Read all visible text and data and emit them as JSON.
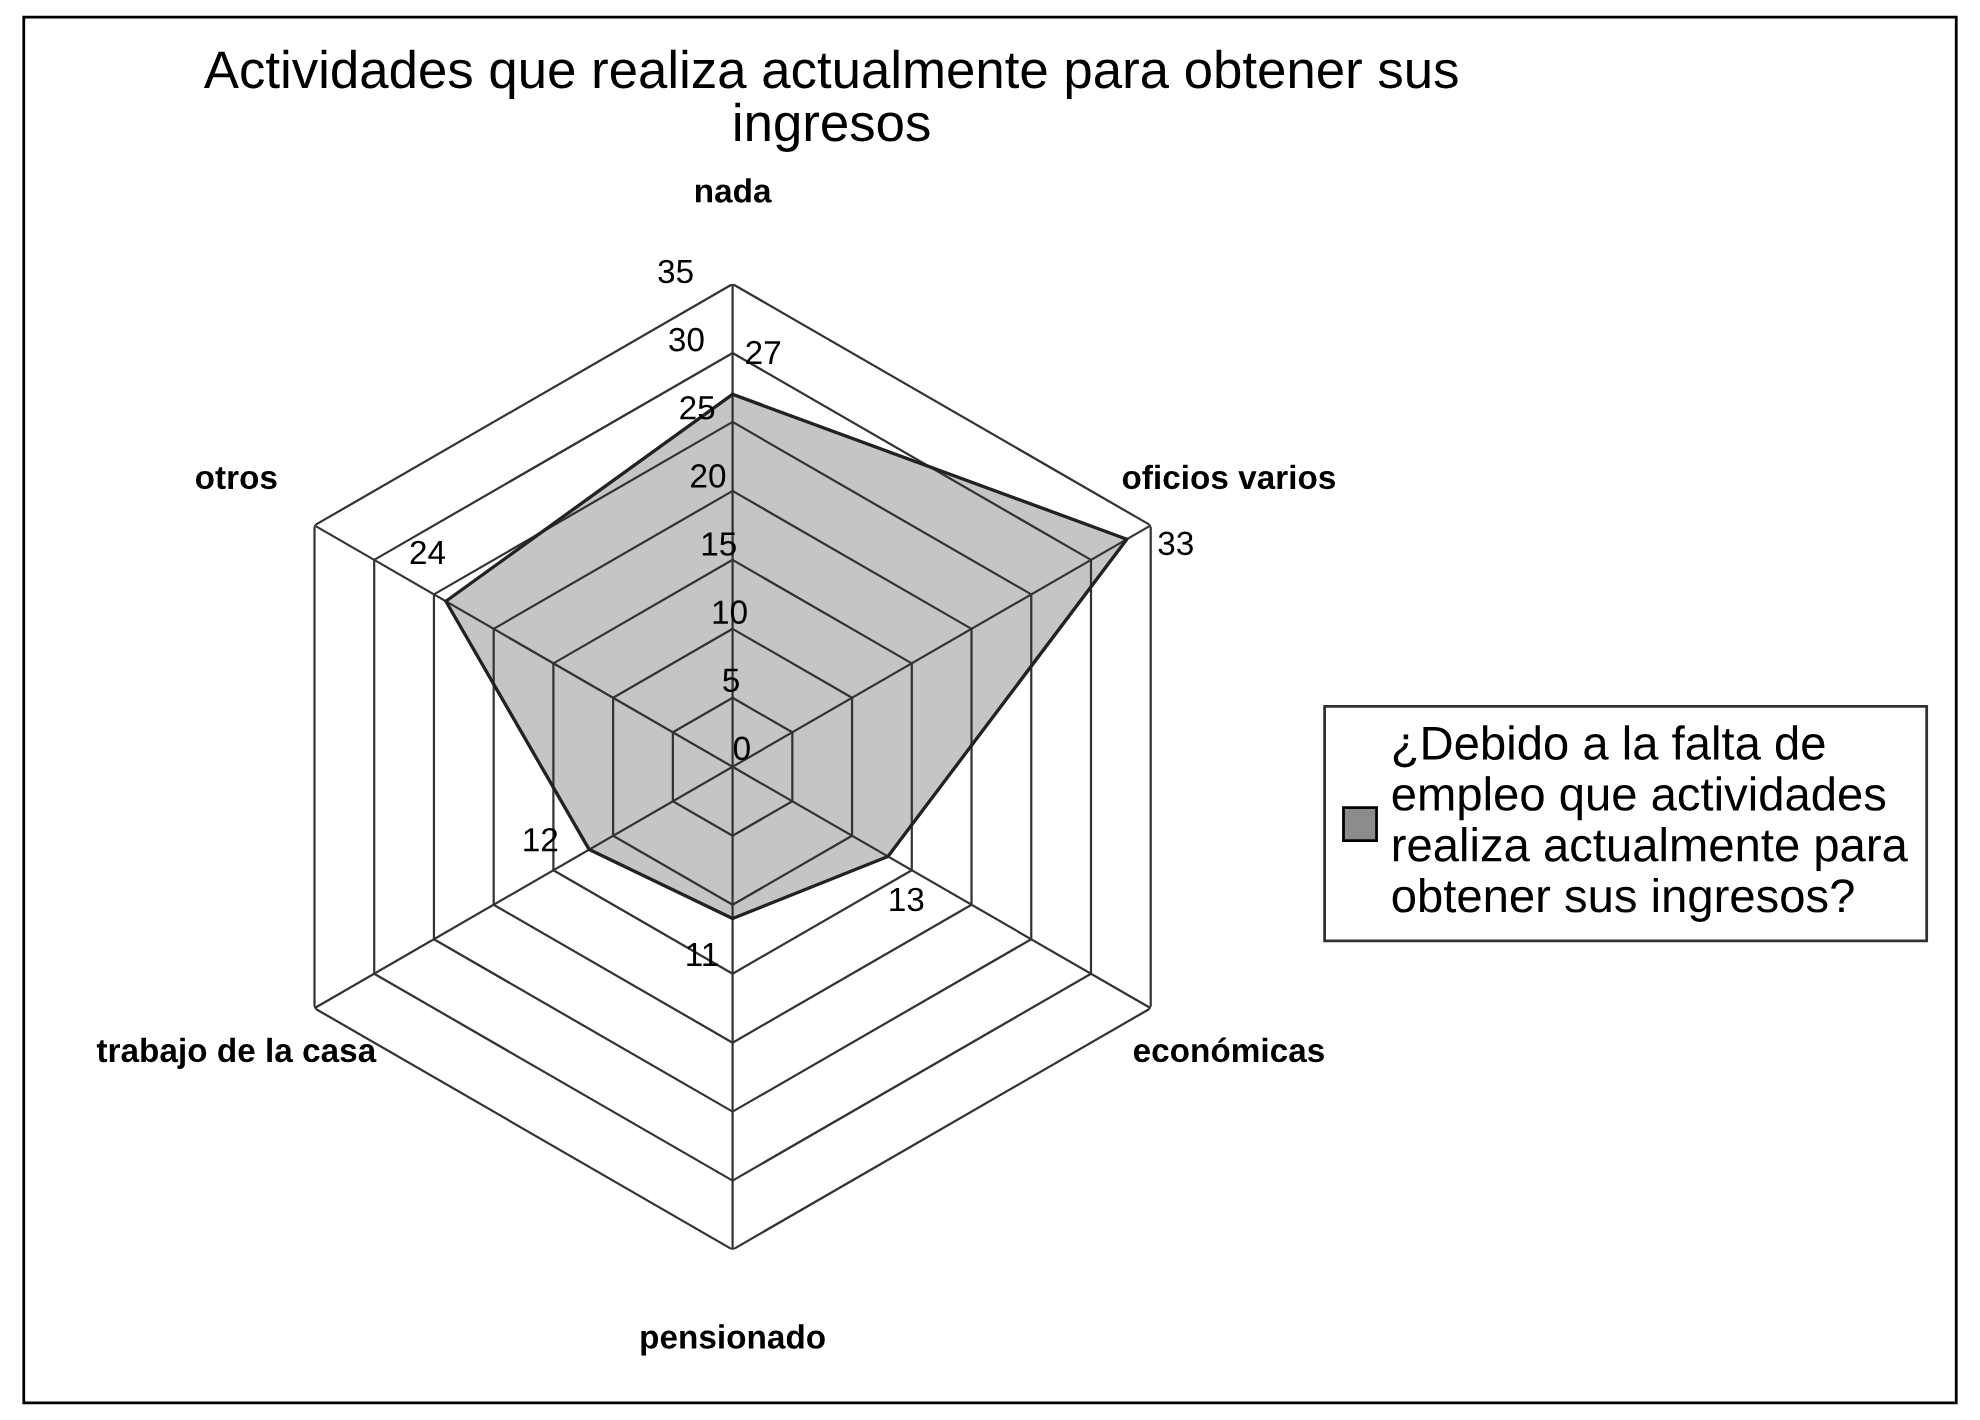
{
  "chart_data": {
    "type": "radar",
    "title": "Actividades que realiza actualmente para obtener sus ingresos",
    "categories": [
      "nada",
      "oficios varios",
      "económicas",
      "pensionado",
      "trabajo de la casa",
      "otros"
    ],
    "series": [
      {
        "name": "¿Debido a la falta de empleo que actividades realiza actualmente para obtener sus ingresos?",
        "color": "#8c8c8c",
        "values": [
          27,
          33,
          13,
          11,
          12,
          24
        ]
      }
    ],
    "ylim": [
      0,
      35
    ],
    "yticks": [
      0,
      5,
      10,
      15,
      20,
      25,
      30,
      35
    ],
    "grid": true,
    "data_labels": true,
    "legend": "right"
  }
}
